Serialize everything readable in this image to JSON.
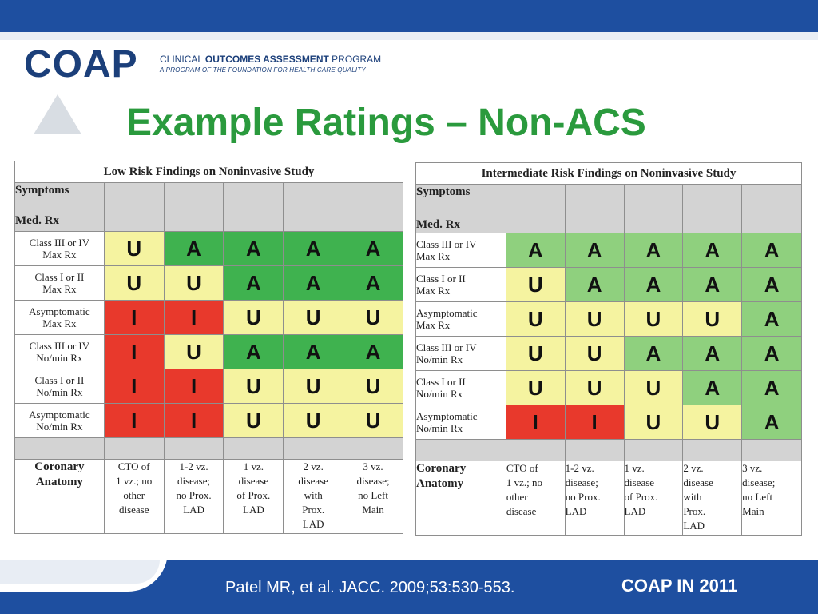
{
  "logo": {
    "wordmark": "COAP",
    "line1_prefix": "CLINICAL ",
    "line1_bold": "OUTCOMES ASSESSMENT",
    "line1_suffix": " PROGRAM",
    "line2": "A PROGRAM OF THE FOUNDATION FOR HEALTH CARE QUALITY"
  },
  "title": "Example Ratings – Non-ACS",
  "tables": [
    {
      "heading": "Low Risk Findings on Noninvasive Study",
      "symptoms_label": "Symptoms",
      "medrx_label": "Med. Rx",
      "rows": [
        {
          "label": [
            "Class III or IV",
            "Max Rx"
          ],
          "cells": [
            "U",
            "A",
            "A",
            "A",
            "A"
          ]
        },
        {
          "label": [
            "Class I or II",
            "Max Rx"
          ],
          "cells": [
            "U",
            "U",
            "A",
            "A",
            "A"
          ]
        },
        {
          "label": [
            "Asymptomatic",
            "Max Rx"
          ],
          "cells": [
            "I",
            "I",
            "U",
            "U",
            "U"
          ]
        },
        {
          "label": [
            "Class III or IV",
            "No/min Rx"
          ],
          "cells": [
            "I",
            "U",
            "A",
            "A",
            "A"
          ]
        },
        {
          "label": [
            "Class I or II",
            "No/min Rx"
          ],
          "cells": [
            "I",
            "I",
            "U",
            "U",
            "U"
          ]
        },
        {
          "label": [
            "Asymptomatic",
            "No/min Rx"
          ],
          "cells": [
            "I",
            "I",
            "U",
            "U",
            "U"
          ]
        }
      ],
      "anatomy_label": [
        "Coronary",
        "Anatomy"
      ],
      "anatomy": [
        [
          "CTO of",
          "1 vz.; no",
          "other",
          "disease"
        ],
        [
          "1-2 vz.",
          "disease;",
          "no Prox.",
          "LAD"
        ],
        [
          "1 vz.",
          "disease",
          "of Prox.",
          "LAD"
        ],
        [
          "2 vz.",
          "disease",
          "with",
          "Prox.",
          "LAD"
        ],
        [
          "3 vz.",
          "disease;",
          "no Left",
          "Main"
        ]
      ]
    },
    {
      "heading": "Intermediate Risk Findings on Noninvasive Study",
      "symptoms_label": "Symptoms",
      "medrx_label": "Med. Rx",
      "rows": [
        {
          "label": [
            "Class III or IV",
            "Max Rx"
          ],
          "cells": [
            "A",
            "A",
            "A",
            "A",
            "A"
          ]
        },
        {
          "label": [
            "Class I or II",
            "Max Rx"
          ],
          "cells": [
            "U",
            "A",
            "A",
            "A",
            "A"
          ]
        },
        {
          "label": [
            "Asymptomatic",
            "Max Rx"
          ],
          "cells": [
            "U",
            "U",
            "U",
            "U",
            "A"
          ]
        },
        {
          "label": [
            "Class III or IV",
            "No/min Rx"
          ],
          "cells": [
            "U",
            "U",
            "A",
            "A",
            "A"
          ]
        },
        {
          "label": [
            "Class I or II",
            "No/min Rx"
          ],
          "cells": [
            "U",
            "U",
            "U",
            "A",
            "A"
          ]
        },
        {
          "label": [
            "Asymptomatic",
            "No/min Rx"
          ],
          "cells": [
            "I",
            "I",
            "U",
            "U",
            "A"
          ]
        }
      ],
      "anatomy_label": [
        "Coronary",
        "Anatomy"
      ],
      "anatomy": [
        [
          "CTO of",
          "1 vz.; no",
          "other",
          "disease"
        ],
        [
          "1-2 vz.",
          "disease;",
          "no Prox.",
          "LAD"
        ],
        [
          "1 vz.",
          "disease",
          "of  Prox.",
          "LAD"
        ],
        [
          "2 vz.",
          "disease",
          "with",
          "Prox.",
          "LAD"
        ],
        [
          "3 vz.",
          "disease;",
          "no Left",
          "Main"
        ]
      ]
    }
  ],
  "colors": {
    "U": "#f5f3a0",
    "A_table1": "#3fb24f",
    "A_table2": "#8fd07e",
    "I": "#e8392c",
    "title": "#2a9a3d",
    "band": "#1e4fa0"
  },
  "footer": {
    "citation": "Patel MR, et al. JACC. 2009;53:530-553.",
    "tag": "COAP IN 2011"
  }
}
